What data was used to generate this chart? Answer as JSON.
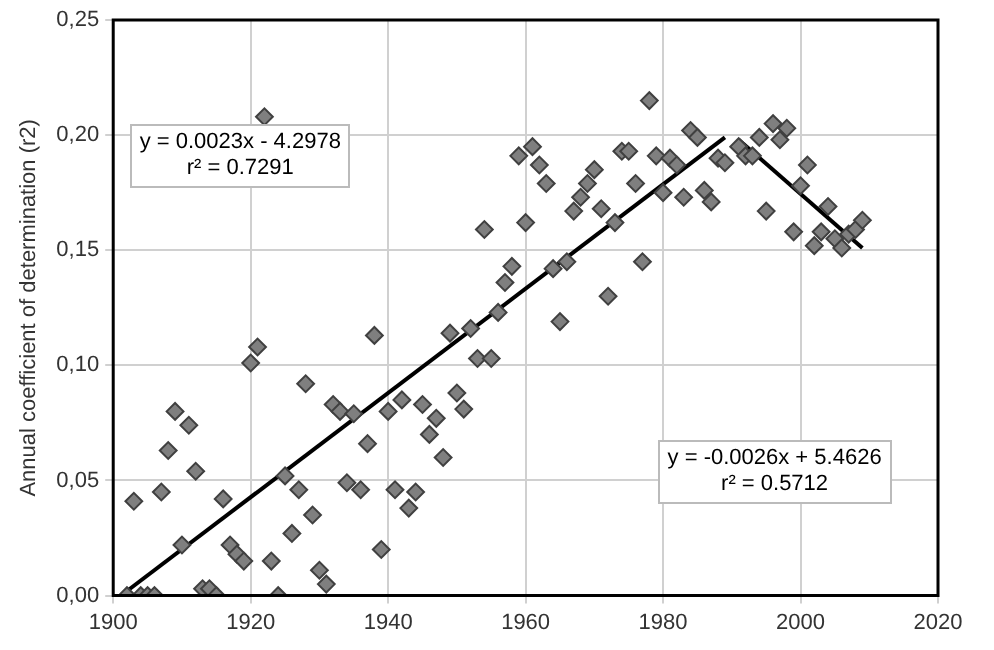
{
  "chart_data": {
    "type": "scatter",
    "ylabel": "Annual coefficient of determination (r2)",
    "xlim": [
      1900,
      2020
    ],
    "xticks": [
      1900,
      1920,
      1940,
      1960,
      1980,
      2000,
      2020
    ],
    "ylim": [
      0,
      0.25
    ],
    "yticks": [
      {
        "value": 0,
        "label": "0,00"
      },
      {
        "value": 0.05,
        "label": "0,05"
      },
      {
        "value": 0.1,
        "label": "0,10"
      },
      {
        "value": 0.15,
        "label": "0,15"
      },
      {
        "value": 0.2,
        "label": "0,20"
      },
      {
        "value": 0.25,
        "label": "0,25"
      }
    ],
    "grid": true,
    "legend": false,
    "annotations": [
      "y = 0.0023x - 4.2978\nr² = 0.7291",
      "y = -0.0026x + 5.4626\nr² = 0.5712"
    ],
    "series": [
      {
        "type": "scatter",
        "color": "#7f7f7f",
        "marker": "diamond",
        "x": [
          1902,
          1903,
          1904,
          1905,
          1906,
          1907,
          1908,
          1909,
          1910,
          1911,
          1912,
          1913,
          1914,
          1915,
          1916,
          1917,
          1918,
          1919,
          1920,
          1921,
          1922,
          1923,
          1924,
          1925,
          1926,
          1927,
          1928,
          1929,
          1930,
          1931,
          1932,
          1933,
          1934,
          1935,
          1936,
          1937,
          1938,
          1939,
          1940,
          1941,
          1942,
          1943,
          1944,
          1945,
          1946,
          1947,
          1948,
          1949,
          1950,
          1951,
          1952,
          1953,
          1954,
          1955,
          1956,
          1957,
          1958,
          1959,
          1960,
          1961,
          1962,
          1963,
          1964,
          1965,
          1966,
          1967,
          1968,
          1969,
          1970,
          1971,
          1972,
          1973,
          1974,
          1975,
          1976,
          1977,
          1978,
          1979,
          1980,
          1981,
          1982,
          1983,
          1984,
          1985,
          1986,
          1987,
          1988,
          1989,
          1991,
          1992,
          1993,
          1994,
          1995,
          1996,
          1997,
          1998,
          1999,
          2000,
          2001,
          2002,
          2003,
          2004,
          2005,
          2006,
          2007,
          2008,
          2009
        ],
        "values": [
          0,
          0.041,
          0,
          0,
          0,
          0.045,
          0.063,
          0.08,
          0.022,
          0.074,
          0.054,
          0.003,
          0.003,
          0,
          0.042,
          0.022,
          0.018,
          0.015,
          0.101,
          0.108,
          0.208,
          0.015,
          0,
          0.052,
          0.027,
          0.046,
          0.092,
          0.035,
          0.011,
          0.005,
          0.083,
          0.08,
          0.049,
          0.079,
          0.046,
          0.066,
          0.113,
          0.02,
          0.08,
          0.046,
          0.085,
          0.038,
          0.045,
          0.083,
          0.07,
          0.077,
          0.06,
          0.114,
          0.088,
          0.081,
          0.116,
          0.103,
          0.159,
          0.103,
          0.123,
          0.136,
          0.143,
          0.191,
          0.162,
          0.195,
          0.187,
          0.179,
          0.142,
          0.119,
          0.145,
          0.167,
          0.173,
          0.179,
          0.185,
          0.168,
          0.13,
          0.162,
          0.193,
          0.193,
          0.179,
          0.145,
          0.215,
          0.191,
          0.175,
          0.19,
          0.187,
          0.173,
          0.202,
          0.199,
          0.176,
          0.171,
          0.19,
          0.188,
          0.195,
          0.191,
          0.191,
          0.199,
          0.167,
          0.205,
          0.198,
          0.203,
          0.158,
          0.178,
          0.187,
          0.152,
          0.158,
          0.169,
          0.155,
          0.151,
          0.157,
          0.159,
          0.163
        ]
      },
      {
        "type": "line",
        "color": "#000000",
        "x": [
          1902,
          1989
        ],
        "values": [
          0.002,
          0.199
        ]
      },
      {
        "type": "line",
        "color": "#000000",
        "x": [
          1991,
          2009
        ],
        "values": [
          0.198,
          0.151
        ]
      }
    ]
  }
}
